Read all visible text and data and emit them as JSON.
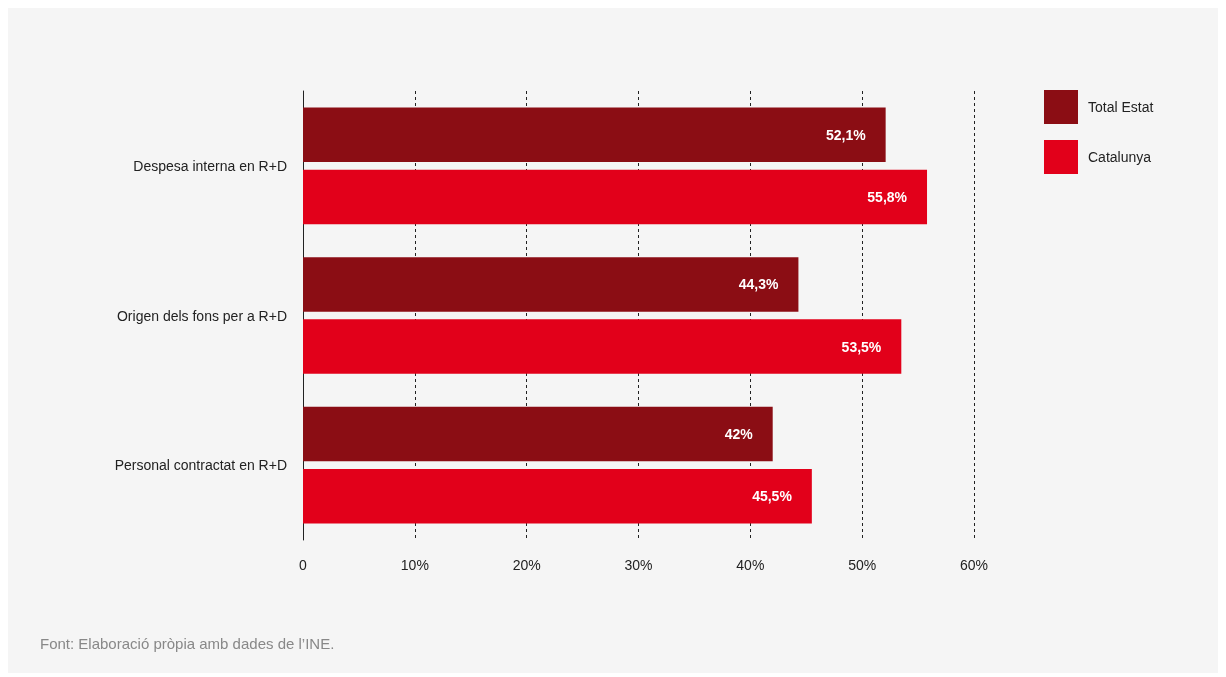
{
  "chart_data": {
    "type": "bar",
    "orientation": "horizontal",
    "categories": [
      "Despesa interna en R+D",
      "Origen dels fons per a R+D",
      "Personal contractat en R+D"
    ],
    "series": [
      {
        "name": "Total Estat",
        "color": "#8b0d14",
        "values": [
          52.1,
          44.3,
          42
        ],
        "value_labels": [
          "52,1%",
          "44,3%",
          "42%"
        ]
      },
      {
        "name": "Catalunya",
        "color": "#e2001a",
        "values": [
          55.8,
          53.5,
          45.5
        ],
        "value_labels": [
          "55,8%",
          "53,5%",
          "45,5%"
        ]
      }
    ],
    "xlim": [
      0,
      60
    ],
    "xticks": [
      0,
      {
        "value": 10,
        "label": "10%"
      },
      {
        "value": 20,
        "label": "20%"
      },
      {
        "value": 30,
        "label": "30%"
      },
      {
        "value": 40,
        "label": "40%"
      },
      {
        "value": 50,
        "label": "50%"
      },
      {
        "value": 60,
        "label": "60%"
      }
    ],
    "grid": "x",
    "legend": "right",
    "annotations": [
      "Font: Elaboració pròpia amb dades de l’INE."
    ]
  }
}
